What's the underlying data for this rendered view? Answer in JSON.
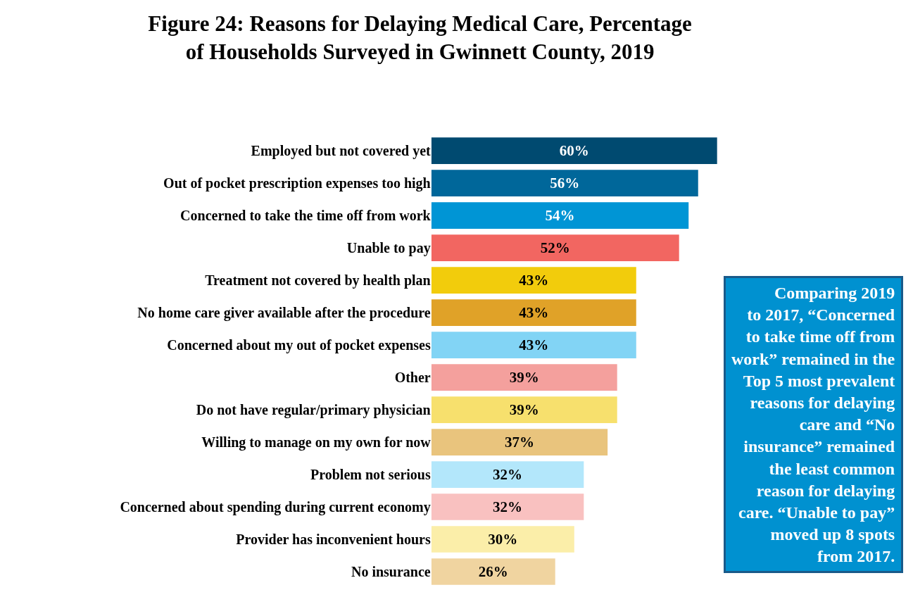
{
  "chart_data": {
    "type": "bar",
    "orientation": "horizontal",
    "title": "Figure 24: Reasons for Delaying Medical Care, Percentage\nof Households Surveyed in Gwinnett County, 2019",
    "categories": [
      "Employed but not covered yet",
      "Out of pocket prescription expenses too high",
      "Concerned to take the time off from work",
      "Unable to pay",
      "Treatment not covered by health plan",
      "No home care giver available after the procedure",
      "Concerned about my out of pocket expenses",
      "Other",
      "Do not have regular/primary physician",
      "Willing to manage on my own for now",
      "Problem not serious",
      "Concerned about spending during current economy",
      "Provider has inconvenient hours",
      "No insurance"
    ],
    "values": [
      60,
      56,
      54,
      52,
      43,
      43,
      43,
      39,
      39,
      37,
      32,
      32,
      30,
      26
    ],
    "value_labels": [
      "60%",
      "56%",
      "54%",
      "52%",
      "43%",
      "43%",
      "43%",
      "39%",
      "39%",
      "37%",
      "32%",
      "32%",
      "30%",
      "26%"
    ],
    "colors": [
      "#004a70",
      "#00679a",
      "#0095d5",
      "#f26661",
      "#f2cc0c",
      "#e0a228",
      "#82d4f5",
      "#f4a09d",
      "#f7e06d",
      "#e9c47d",
      "#b3e7fb",
      "#f9c1c0",
      "#fbeea9",
      "#f0d4a0"
    ],
    "annotations": [
      "Comparing 2019\nto 2017, “Concerned\nto take time off from\nwork” remained in the\nTop 5 most prevalent\nreasons for delaying\ncare and “No\ninsurance” remained\nthe least common\nreason for delaying\ncare. “Unable to pay”\nmoved up 8 spots\nfrom 2017."
    ],
    "legend": false
  }
}
